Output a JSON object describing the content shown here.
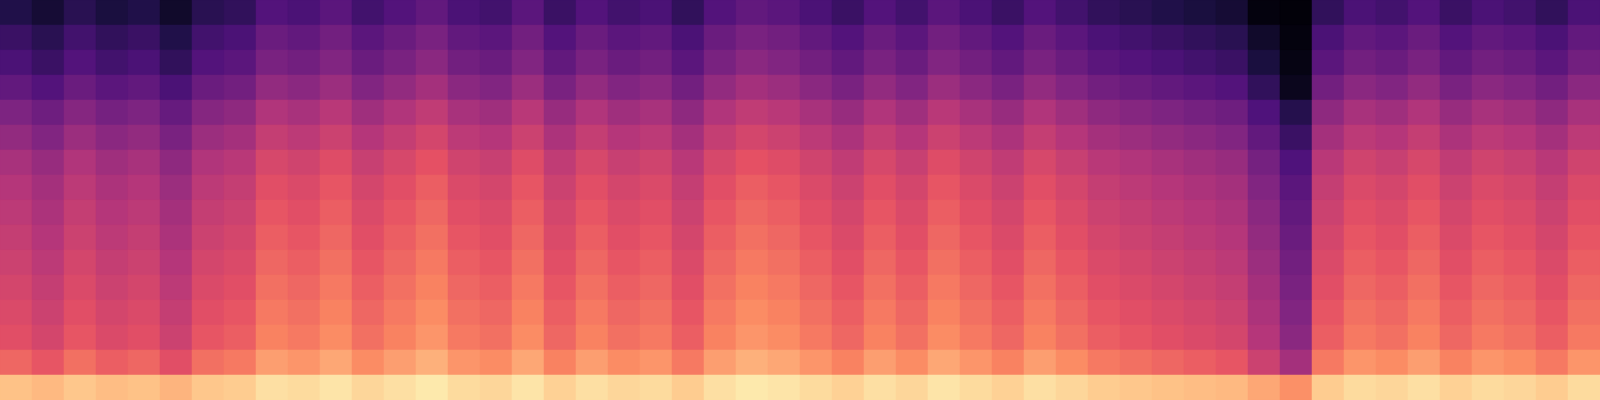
{
  "chart_data": {
    "type": "heatmap",
    "tick_labels": false,
    "zlim": [
      0,
      100
    ],
    "cells": [
      [
        14,
        10,
        16,
        12,
        14,
        8,
        16,
        18,
        26,
        24,
        28,
        22,
        26,
        30,
        24,
        22,
        28,
        20,
        26,
        22,
        24,
        18,
        26,
        30,
        28,
        24,
        20,
        26,
        22,
        28,
        24,
        20,
        26,
        22,
        18,
        16,
        14,
        12,
        10,
        2,
        1,
        18,
        24,
        22,
        26,
        20,
        24,
        22,
        18,
        24
      ],
      [
        20,
        16,
        22,
        18,
        20,
        14,
        22,
        24,
        32,
        30,
        34,
        28,
        32,
        36,
        30,
        28,
        34,
        26,
        32,
        28,
        30,
        24,
        32,
        36,
        34,
        30,
        26,
        32,
        28,
        34,
        30,
        26,
        32,
        28,
        24,
        22,
        20,
        18,
        16,
        8,
        2,
        24,
        30,
        28,
        32,
        26,
        30,
        28,
        24,
        30
      ],
      [
        24,
        20,
        26,
        22,
        24,
        18,
        26,
        28,
        36,
        34,
        38,
        32,
        36,
        40,
        34,
        32,
        38,
        30,
        36,
        32,
        34,
        28,
        36,
        40,
        38,
        34,
        30,
        36,
        32,
        38,
        34,
        30,
        36,
        32,
        28,
        26,
        24,
        22,
        20,
        12,
        3,
        28,
        34,
        32,
        36,
        30,
        34,
        32,
        28,
        34
      ],
      [
        30,
        26,
        32,
        28,
        30,
        24,
        32,
        34,
        42,
        40,
        44,
        38,
        42,
        46,
        40,
        38,
        44,
        36,
        42,
        38,
        40,
        34,
        42,
        46,
        44,
        40,
        36,
        42,
        38,
        44,
        40,
        36,
        42,
        38,
        34,
        32,
        30,
        28,
        26,
        18,
        5,
        34,
        40,
        38,
        42,
        36,
        40,
        38,
        34,
        40
      ],
      [
        37,
        33,
        39,
        35,
        37,
        31,
        39,
        41,
        49,
        47,
        51,
        45,
        49,
        53,
        47,
        45,
        51,
        43,
        49,
        45,
        47,
        41,
        49,
        53,
        51,
        47,
        43,
        49,
        45,
        51,
        47,
        43,
        49,
        45,
        41,
        39,
        37,
        35,
        33,
        25,
        15,
        41,
        47,
        45,
        49,
        43,
        47,
        45,
        41,
        47
      ],
      [
        42,
        38,
        44,
        40,
        42,
        36,
        44,
        46,
        54,
        52,
        56,
        50,
        54,
        58,
        52,
        50,
        56,
        48,
        54,
        50,
        52,
        46,
        54,
        58,
        56,
        52,
        48,
        54,
        50,
        56,
        52,
        48,
        54,
        50,
        46,
        44,
        42,
        40,
        38,
        30,
        20,
        46,
        52,
        50,
        54,
        48,
        52,
        50,
        46,
        52
      ],
      [
        47,
        43,
        49,
        45,
        47,
        41,
        49,
        51,
        59,
        57,
        61,
        55,
        59,
        63,
        57,
        55,
        61,
        53,
        59,
        55,
        57,
        51,
        59,
        63,
        61,
        57,
        53,
        59,
        55,
        61,
        57,
        53,
        59,
        55,
        51,
        49,
        47,
        45,
        43,
        35,
        25,
        51,
        57,
        55,
        59,
        53,
        57,
        55,
        51,
        57
      ],
      [
        50,
        46,
        52,
        48,
        50,
        44,
        52,
        54,
        62,
        60,
        64,
        58,
        62,
        66,
        60,
        58,
        64,
        56,
        62,
        58,
        60,
        54,
        62,
        66,
        64,
        60,
        56,
        62,
        58,
        64,
        60,
        56,
        62,
        58,
        54,
        52,
        50,
        48,
        46,
        38,
        28,
        54,
        60,
        58,
        62,
        56,
        60,
        58,
        54,
        60
      ],
      [
        52,
        48,
        54,
        50,
        52,
        46,
        54,
        56,
        64,
        62,
        66,
        60,
        64,
        68,
        62,
        60,
        66,
        58,
        64,
        60,
        62,
        56,
        64,
        68,
        66,
        62,
        58,
        64,
        60,
        66,
        62,
        58,
        64,
        60,
        56,
        54,
        52,
        50,
        48,
        40,
        30,
        56,
        62,
        60,
        64,
        58,
        62,
        60,
        56,
        62
      ],
      [
        54,
        50,
        56,
        52,
        54,
        48,
        56,
        58,
        66,
        64,
        68,
        62,
        66,
        70,
        64,
        62,
        68,
        60,
        66,
        62,
        64,
        58,
        66,
        70,
        68,
        64,
        60,
        66,
        62,
        68,
        64,
        60,
        66,
        62,
        58,
        56,
        54,
        52,
        50,
        42,
        32,
        58,
        64,
        62,
        66,
        60,
        64,
        62,
        58,
        64
      ],
      [
        56,
        52,
        58,
        54,
        56,
        50,
        58,
        60,
        68,
        66,
        70,
        64,
        68,
        72,
        66,
        64,
        70,
        62,
        68,
        64,
        66,
        60,
        68,
        72,
        70,
        66,
        62,
        68,
        64,
        70,
        66,
        62,
        68,
        64,
        60,
        58,
        56,
        54,
        52,
        44,
        34,
        60,
        66,
        64,
        68,
        62,
        66,
        64,
        60,
        66
      ],
      [
        58,
        54,
        60,
        56,
        58,
        52,
        60,
        62,
        70,
        68,
        72,
        66,
        70,
        74,
        68,
        66,
        72,
        64,
        70,
        66,
        68,
        62,
        70,
        74,
        72,
        68,
        64,
        70,
        66,
        72,
        68,
        64,
        70,
        66,
        62,
        60,
        58,
        56,
        54,
        46,
        36,
        62,
        68,
        66,
        70,
        64,
        68,
        66,
        62,
        68
      ],
      [
        60,
        56,
        62,
        58,
        60,
        54,
        62,
        64,
        72,
        70,
        74,
        68,
        72,
        76,
        70,
        68,
        74,
        66,
        72,
        68,
        70,
        64,
        72,
        76,
        74,
        70,
        66,
        72,
        68,
        74,
        70,
        66,
        72,
        68,
        64,
        62,
        60,
        58,
        56,
        48,
        38,
        64,
        70,
        68,
        72,
        66,
        70,
        68,
        64,
        70
      ],
      [
        62,
        58,
        64,
        60,
        62,
        56,
        64,
        66,
        74,
        72,
        76,
        70,
        74,
        78,
        72,
        70,
        76,
        68,
        74,
        70,
        72,
        66,
        74,
        78,
        76,
        72,
        68,
        74,
        70,
        76,
        72,
        68,
        74,
        70,
        66,
        64,
        62,
        60,
        58,
        50,
        40,
        66,
        72,
        70,
        74,
        68,
        72,
        70,
        66,
        72
      ],
      [
        68,
        64,
        70,
        66,
        68,
        62,
        70,
        72,
        80,
        78,
        82,
        76,
        80,
        84,
        78,
        76,
        82,
        74,
        80,
        76,
        78,
        72,
        80,
        84,
        82,
        78,
        74,
        80,
        76,
        82,
        78,
        74,
        80,
        76,
        72,
        70,
        68,
        66,
        64,
        56,
        46,
        72,
        78,
        76,
        80,
        74,
        78,
        76,
        72,
        78
      ],
      [
        88,
        86,
        89,
        87,
        88,
        85,
        89,
        90,
        94,
        93,
        95,
        92,
        94,
        96,
        93,
        92,
        95,
        91,
        94,
        92,
        93,
        90,
        94,
        96,
        95,
        93,
        91,
        94,
        92,
        95,
        93,
        91,
        94,
        92,
        90,
        89,
        88,
        87,
        86,
        82,
        77,
        90,
        93,
        92,
        94,
        91,
        93,
        92,
        90,
        93
      ]
    ]
  }
}
